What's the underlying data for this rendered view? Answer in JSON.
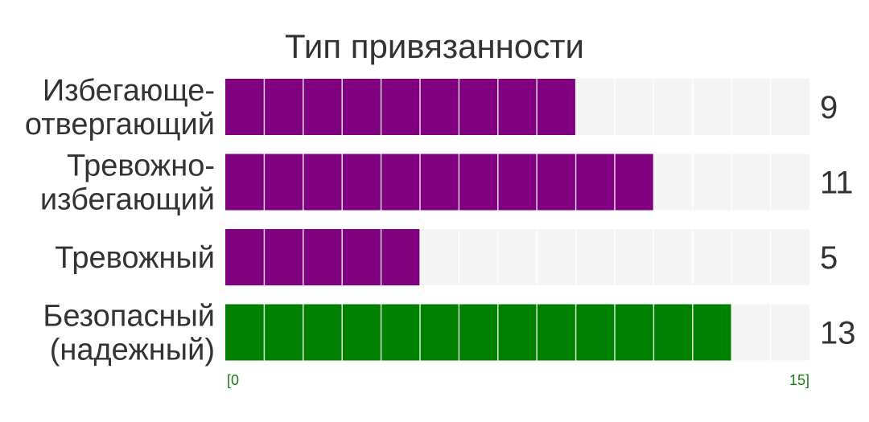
{
  "chart_data": {
    "type": "bar",
    "orientation": "horizontal",
    "title": "Тип привязанности",
    "categories": [
      [
        "Избегающе-",
        "отвергающий"
      ],
      [
        "Тревожно-",
        "избегающий"
      ],
      [
        "Тревожный"
      ],
      [
        "Безопасный",
        "(надежный)"
      ]
    ],
    "values": [
      9,
      11,
      5,
      13
    ],
    "value_labels": [
      "9",
      "11",
      "5",
      "13"
    ],
    "bar_colors": [
      "#800080",
      "#800080",
      "#800080",
      "#008000"
    ],
    "track_color": "#f5f5f5",
    "xlim": [
      0,
      15
    ],
    "axis_min_label": "[0",
    "axis_max_label": "15]",
    "grid": "segmented bars, 15 units per bar"
  }
}
